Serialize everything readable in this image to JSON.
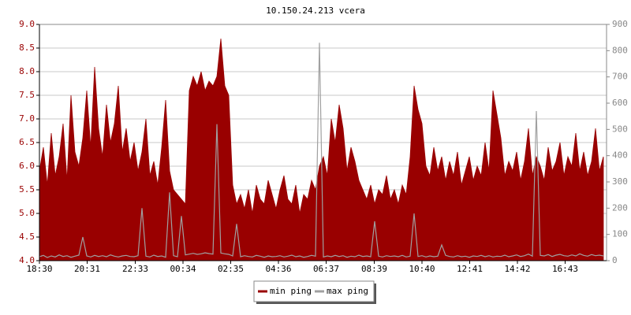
{
  "chart_data": {
    "type": "area",
    "title": "10.150.24.213 vcera",
    "x": [
      0,
      10,
      20,
      30,
      40,
      50,
      60,
      70,
      80,
      90,
      100,
      110,
      120,
      130,
      140,
      150,
      160,
      170,
      180,
      190,
      200,
      210,
      220,
      230,
      240,
      250,
      260,
      270,
      280,
      290,
      300,
      310,
      320,
      330,
      340,
      350,
      360,
      370,
      380,
      390,
      400,
      410,
      420,
      430,
      440,
      450,
      460,
      470,
      480,
      490,
      500,
      510,
      520,
      530,
      540,
      550,
      560,
      570,
      580,
      590,
      600,
      610,
      620,
      630,
      640,
      650,
      660,
      670,
      680,
      690,
      700,
      710,
      720,
      730,
      740,
      750,
      760,
      770,
      780,
      790,
      800,
      810,
      820,
      830,
      840,
      850,
      860,
      870,
      880,
      890,
      900,
      910,
      920,
      930,
      940,
      950,
      960,
      970,
      980,
      990,
      1000,
      1010,
      1020,
      1030,
      1040,
      1050,
      1060,
      1070,
      1080,
      1090,
      1100,
      1110,
      1120,
      1130,
      1140,
      1150,
      1160,
      1170,
      1180,
      1190,
      1200,
      1210,
      1220,
      1230,
      1240,
      1250,
      1260,
      1270,
      1280,
      1290,
      1300,
      1310,
      1320,
      1330,
      1340,
      1350,
      1360,
      1370,
      1380,
      1390,
      1400,
      1410,
      1420,
      1430
    ],
    "xlim": [
      0,
      1438
    ],
    "xticks": [
      {
        "value": 0,
        "label": "18:30"
      },
      {
        "value": 121,
        "label": "20:31"
      },
      {
        "value": 243,
        "label": "22:33"
      },
      {
        "value": 364,
        "label": "00:34"
      },
      {
        "value": 485,
        "label": "02:35"
      },
      {
        "value": 606,
        "label": "04:36"
      },
      {
        "value": 727,
        "label": "06:37"
      },
      {
        "value": 849,
        "label": "08:39"
      },
      {
        "value": 970,
        "label": "10:40"
      },
      {
        "value": 1091,
        "label": "12:41"
      },
      {
        "value": 1212,
        "label": "14:42"
      },
      {
        "value": 1333,
        "label": "16:43"
      }
    ],
    "ylim": [
      4,
      9
    ],
    "yticks": [
      {
        "value": 4,
        "label": "4.0"
      },
      4.5,
      {
        "value": 5,
        "label": "5.0"
      },
      5.5,
      {
        "value": 6,
        "label": "6.0"
      },
      6.5,
      {
        "value": 7,
        "label": "7.0"
      },
      7.5,
      {
        "value": 8,
        "label": "8.0"
      },
      8.5,
      {
        "value": 9,
        "label": "9.0"
      }
    ],
    "y2lim": [
      0,
      900
    ],
    "y2ticks": [
      0,
      100,
      200,
      300,
      400,
      500,
      600,
      700,
      800,
      900
    ],
    "grid": true,
    "legend": "bottom",
    "series": [
      {
        "name": "min ping",
        "color": "#990000",
        "values": [
          5.9,
          6.4,
          5.6,
          6.7,
          5.8,
          6.2,
          6.9,
          5.7,
          7.5,
          6.3,
          6.0,
          6.6,
          7.6,
          6.4,
          8.1,
          6.8,
          6.2,
          7.3,
          6.5,
          6.9,
          7.7,
          6.3,
          6.8,
          6.1,
          6.5,
          5.9,
          6.3,
          7.0,
          5.8,
          6.1,
          5.6,
          6.4,
          7.4,
          5.9,
          5.5,
          5.4,
          5.3,
          5.2,
          7.6,
          7.9,
          7.7,
          8.0,
          7.6,
          7.8,
          7.7,
          7.9,
          8.7,
          7.7,
          7.5,
          5.6,
          5.2,
          5.4,
          5.1,
          5.5,
          5.0,
          5.6,
          5.3,
          5.2,
          5.7,
          5.4,
          5.1,
          5.5,
          5.8,
          5.3,
          5.2,
          5.6,
          5.0,
          5.4,
          5.3,
          5.7,
          5.5,
          6.0,
          6.2,
          5.8,
          7.0,
          6.5,
          7.3,
          6.8,
          5.9,
          6.4,
          6.1,
          5.7,
          5.5,
          5.3,
          5.6,
          5.2,
          5.5,
          5.4,
          5.8,
          5.3,
          5.5,
          5.2,
          5.6,
          5.4,
          6.2,
          7.7,
          7.2,
          6.9,
          6.0,
          5.8,
          6.4,
          5.9,
          6.2,
          5.7,
          6.1,
          5.8,
          6.3,
          5.6,
          5.9,
          6.2,
          5.7,
          6.0,
          5.8,
          6.5,
          5.9,
          7.6,
          7.1,
          6.6,
          5.8,
          6.1,
          5.9,
          6.3,
          5.7,
          6.1,
          6.8,
          5.8,
          6.2,
          6.0,
          5.7,
          6.4,
          5.9,
          6.1,
          6.5,
          5.8,
          6.2,
          6.0,
          6.7,
          5.9,
          6.3,
          5.8,
          6.1,
          6.8,
          5.9,
          6.2
        ]
      },
      {
        "name": "max ping",
        "color": "#a0a0a0",
        "axis": "y2",
        "values": [
          15,
          20,
          12,
          18,
          14,
          22,
          16,
          19,
          13,
          17,
          21,
          90,
          18,
          14,
          20,
          16,
          19,
          15,
          22,
          17,
          14,
          18,
          20,
          16,
          15,
          19,
          200,
          17,
          14,
          21,
          16,
          18,
          13,
          260,
          19,
          15,
          170,
          22,
          25,
          28,
          24,
          26,
          30,
          27,
          25,
          520,
          29,
          26,
          24,
          18,
          140,
          15,
          19,
          16,
          14,
          20,
          17,
          13,
          18,
          15,
          16,
          19,
          14,
          17,
          21,
          15,
          18,
          13,
          16,
          20,
          17,
          830,
          14,
          18,
          15,
          20,
          16,
          19,
          13,
          17,
          15,
          21,
          16,
          18,
          15,
          150,
          17,
          14,
          19,
          16,
          18,
          15,
          20,
          14,
          17,
          180,
          16,
          19,
          14,
          18,
          15,
          17,
          60,
          20,
          16,
          14,
          19,
          15,
          17,
          13,
          18,
          16,
          20,
          15,
          19,
          14,
          17,
          16,
          21,
          15,
          18,
          22,
          16,
          19,
          25,
          17,
          570,
          20,
          18,
          23,
          16,
          21,
          24,
          19,
          17,
          22,
          18,
          26,
          20,
          17,
          23,
          19,
          21,
          18
        ]
      }
    ]
  }
}
